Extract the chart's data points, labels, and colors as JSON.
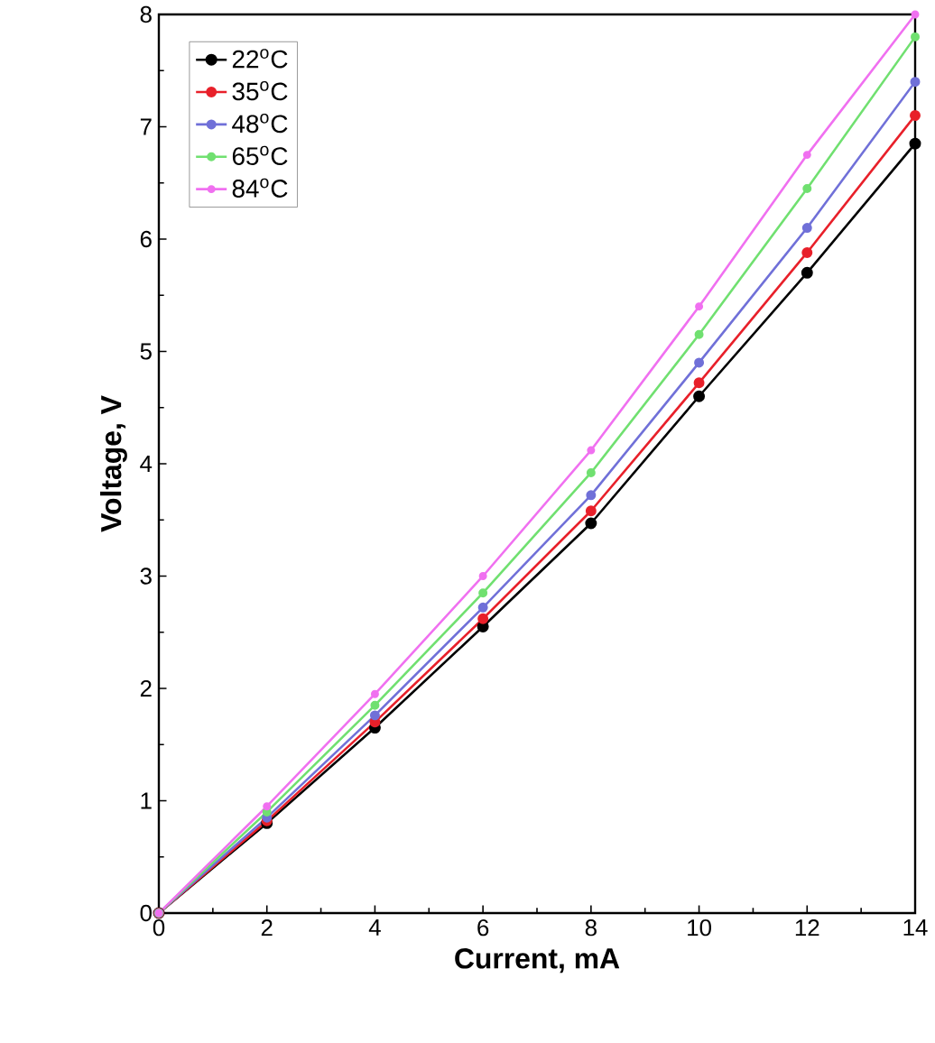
{
  "chart_data": {
    "type": "line",
    "xlabel": "Current, mA",
    "ylabel": "Voltage, V",
    "x": [
      0,
      2,
      4,
      6,
      8,
      10,
      12,
      14
    ],
    "series": [
      {
        "name": "22$^{o}$C",
        "color": "#000000",
        "values": [
          0,
          0.8,
          1.65,
          2.55,
          3.47,
          4.6,
          5.7,
          6.85
        ]
      },
      {
        "name": "35$^{o}$C",
        "color": "#e8202a",
        "values": [
          0,
          0.82,
          1.7,
          2.62,
          3.58,
          4.72,
          5.88,
          7.1
        ]
      },
      {
        "name": "48$^{o}$C",
        "color": "#7070d8",
        "values": [
          0,
          0.85,
          1.76,
          2.72,
          3.72,
          4.9,
          6.1,
          7.4
        ]
      },
      {
        "name": "65$^{o}$C",
        "color": "#70e070",
        "values": [
          0,
          0.9,
          1.85,
          2.85,
          3.92,
          5.15,
          6.45,
          7.8
        ]
      },
      {
        "name": "84$^{o}$C",
        "color": "#f070f0",
        "values": [
          0,
          0.95,
          1.95,
          3.0,
          4.12,
          5.4,
          6.75,
          8.0
        ]
      }
    ],
    "xlim": [
      0,
      14
    ],
    "ylim": [
      0,
      8
    ],
    "xticks": [
      0,
      2,
      4,
      6,
      8,
      10,
      12,
      14
    ],
    "yticks": [
      0,
      1,
      2,
      3,
      4,
      5,
      6,
      7,
      8
    ],
    "legend": "top left",
    "marker": "circle",
    "grid": false
  }
}
